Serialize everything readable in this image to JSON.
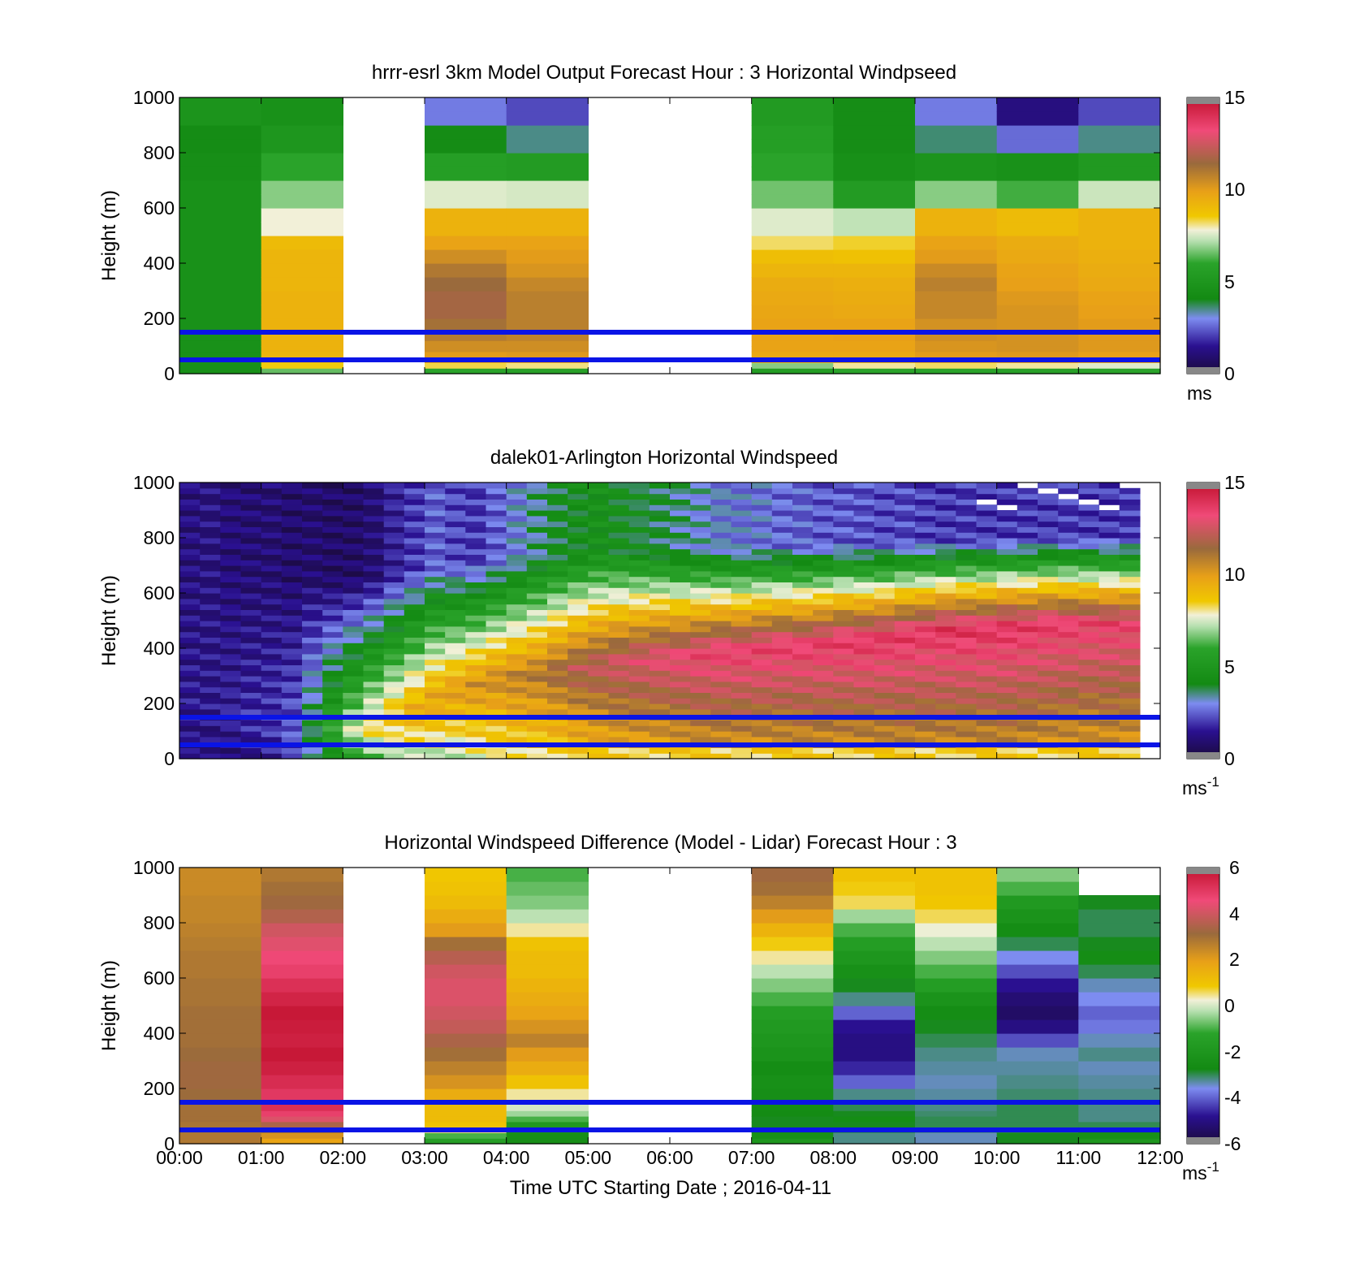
{
  "figure": {
    "xlabel": "Time UTC  Starting Date ; 2016-04-11",
    "x_ticks": [
      "00:00",
      "01:00",
      "02:00",
      "03:00",
      "04:00",
      "05:00",
      "06:00",
      "07:00",
      "08:00",
      "09:00",
      "10:00",
      "11:00",
      "12:00"
    ]
  },
  "chart_data": [
    {
      "type": "heatmap",
      "title": "hrrr-esrl 3km Model Output   Forecast Hour : 3 Horizontal Windpseed",
      "ylabel": "Height (m)",
      "xlabel": "",
      "xlim": [
        0,
        12
      ],
      "ylim": [
        0,
        1000
      ],
      "y_ticks": [
        "0",
        "200",
        "400",
        "600",
        "800",
        "1000"
      ],
      "colorbar": {
        "ticks": [
          "0",
          "5",
          "10",
          "15"
        ],
        "range": [
          0,
          15
        ],
        "unit_label": "ms",
        "unit_exponent": ""
      },
      "reference_lines_m": [
        50,
        150
      ],
      "reference_line_color": "#0a14e6",
      "heights_m": [
        20,
        40,
        60,
        80,
        100,
        120,
        150,
        200,
        250,
        300,
        350,
        400,
        450,
        500,
        550,
        600,
        650,
        700,
        750,
        800,
        850,
        900,
        950,
        1000
      ],
      "hours": [
        0,
        1,
        3,
        4,
        7,
        8,
        9,
        10,
        11
      ],
      "values": [
        [
          4.5,
          4.5,
          4.6,
          4.6,
          4.6,
          4.6,
          4.6,
          4.6,
          4.6,
          4.6,
          4.6,
          4.6,
          4.6,
          4.6,
          4.6,
          4.6,
          4.6,
          4.6,
          4.4,
          4.4,
          4.2,
          4.2,
          4.8,
          4.8
        ],
        [
          6.5,
          8.5,
          9.0,
          9.2,
          9.3,
          9.3,
          9.3,
          9.3,
          9.3,
          9.3,
          9.2,
          9.2,
          9.2,
          9.0,
          7.8,
          7.8,
          6.8,
          6.8,
          6.0,
          6.0,
          5.0,
          5.0,
          4.6,
          4.6
        ],
        [
          6.0,
          8.3,
          9.6,
          10.0,
          10.4,
          10.4,
          10.9,
          11.2,
          11.6,
          11.6,
          11.4,
          11.0,
          10.4,
          9.8,
          9.3,
          9.3,
          7.6,
          7.6,
          5.6,
          5.6,
          4.2,
          4.2,
          2.8,
          2.8
        ],
        [
          5.8,
          8.1,
          9.6,
          10.1,
          10.4,
          10.4,
          10.7,
          10.8,
          10.8,
          10.8,
          10.6,
          10.2,
          10.0,
          9.8,
          9.3,
          9.3,
          7.5,
          7.5,
          5.4,
          5.4,
          3.5,
          3.5,
          2.2,
          2.2
        ],
        [
          5.5,
          6.8,
          9.1,
          9.6,
          9.8,
          9.8,
          9.8,
          9.8,
          9.7,
          9.6,
          9.5,
          9.2,
          8.9,
          8.2,
          7.6,
          7.6,
          6.6,
          6.6,
          6.0,
          6.0,
          5.6,
          5.6,
          5.3,
          5.3
        ],
        [
          6.0,
          8.0,
          9.2,
          9.6,
          9.8,
          9.8,
          9.9,
          9.8,
          9.6,
          9.5,
          9.4,
          9.2,
          8.8,
          8.4,
          7.3,
          7.3,
          5.4,
          5.4,
          4.5,
          4.5,
          4.3,
          4.3,
          4.3,
          4.3
        ],
        [
          6.0,
          8.2,
          9.6,
          10.0,
          10.2,
          10.2,
          10.4,
          10.3,
          10.6,
          10.6,
          10.8,
          10.5,
          10.0,
          9.8,
          9.3,
          9.3,
          6.8,
          6.8,
          4.8,
          4.8,
          3.6,
          3.6,
          2.8,
          2.8
        ],
        [
          5.8,
          8.0,
          9.8,
          10.1,
          10.3,
          10.3,
          10.3,
          10.2,
          10.2,
          10.1,
          9.9,
          9.8,
          9.6,
          9.5,
          9.0,
          9.0,
          6.2,
          6.2,
          4.6,
          4.6,
          2.6,
          2.6,
          1.2,
          1.2
        ],
        [
          6.0,
          7.6,
          9.6,
          9.9,
          10.1,
          10.1,
          10.1,
          10.0,
          9.9,
          9.8,
          9.6,
          9.5,
          9.4,
          9.3,
          9.3,
          9.3,
          7.4,
          7.4,
          5.2,
          5.2,
          3.5,
          3.5,
          2.2,
          2.2
        ]
      ]
    },
    {
      "type": "heatmap",
      "title": "dalek01-Arlington  Horizontal Windspeed",
      "ylabel": "Height (m)",
      "xlabel": "",
      "xlim": [
        0,
        12
      ],
      "ylim": [
        0,
        1000
      ],
      "y_ticks": [
        "0",
        "200",
        "400",
        "600",
        "800",
        "1000"
      ],
      "colorbar": {
        "ticks": [
          "0",
          "5",
          "10",
          "15"
        ],
        "range": [
          0,
          15
        ],
        "unit_label": "ms",
        "unit_exponent": "-1"
      },
      "reference_lines_m": [
        50,
        150
      ],
      "reference_line_color": "#0a14e6",
      "time_step_hours": 0.25,
      "height_step_m": 20,
      "data_end_hour": 11.8,
      "profile_model": {
        "low_jet_core_height_m": [
          200,
          200,
          180,
          150,
          130,
          120,
          110,
          100,
          110,
          130,
          160,
          190,
          230,
          260,
          280,
          300,
          310,
          320,
          330,
          340,
          350,
          360,
          370,
          380,
          380,
          390,
          400,
          400,
          410,
          420,
          420,
          430,
          440,
          440,
          450,
          460,
          470,
          480,
          480,
          480,
          490,
          490,
          500,
          500,
          500,
          500,
          500,
          500
        ],
        "low_jet_peak_ms": [
          1.5,
          1.4,
          1.6,
          1.8,
          2.0,
          2.5,
          4.0,
          6.0,
          7.5,
          8.5,
          9.0,
          9.5,
          9.8,
          10.0,
          10.3,
          10.5,
          10.8,
          11.0,
          11.5,
          12.0,
          12.3,
          12.6,
          12.8,
          13.0,
          13.2,
          13.4,
          13.5,
          13.5,
          13.6,
          13.6,
          13.6,
          13.7,
          13.7,
          13.8,
          13.8,
          13.8,
          13.8,
          13.9,
          13.9,
          13.9,
          13.9,
          13.8,
          13.7,
          13.6,
          13.5,
          13.5,
          13.4,
          13.4
        ],
        "top_ms": [
          1.2,
          1.2,
          1.1,
          1.0,
          1.0,
          0.9,
          0.9,
          0.8,
          0.8,
          1.0,
          1.6,
          2.0,
          2.5,
          2.2,
          2.0,
          2.5,
          3.0,
          3.5,
          4.0,
          4.2,
          4.5,
          4.3,
          4.0,
          3.8,
          3.5,
          3.2,
          3.0,
          2.8,
          2.8,
          2.6,
          2.5,
          2.4,
          2.4,
          2.3,
          2.2,
          2.2,
          2.1,
          2.0,
          2.0,
          2.0,
          2.0,
          2.0,
          2.0,
          2.0,
          2.0,
          2.0,
          2.0,
          2.0
        ]
      },
      "missing_data_note": "white gaps near top after ~09:30"
    },
    {
      "type": "heatmap",
      "title": "Horizontal Windspeed Difference (Model - Lidar) Forecast Hour : 3",
      "ylabel": "Height (m)",
      "xlabel": "Time UTC  Starting Date ; 2016-04-11",
      "xlim": [
        0,
        12
      ],
      "ylim": [
        0,
        1000
      ],
      "y_ticks": [
        "0",
        "200",
        "400",
        "600",
        "800",
        "1000"
      ],
      "colorbar": {
        "ticks": [
          "-6",
          "-4",
          "-2",
          "0",
          "2",
          "4",
          "6"
        ],
        "range": [
          -6,
          6
        ],
        "unit_label": "ms",
        "unit_exponent": "-1"
      },
      "reference_lines_m": [
        50,
        150
      ],
      "reference_line_color": "#0a14e6",
      "heights_m": [
        20,
        40,
        60,
        80,
        100,
        120,
        150,
        200,
        250,
        300,
        350,
        400,
        450,
        500,
        550,
        600,
        650,
        700,
        750,
        800,
        850,
        900,
        950,
        1000
      ],
      "hours": [
        0,
        1,
        3,
        4,
        7,
        8,
        9,
        10,
        11
      ],
      "values": [
        [
          2.8,
          2.8,
          2.9,
          2.9,
          3.0,
          3.0,
          3.0,
          3.1,
          3.2,
          3.2,
          3.1,
          3.0,
          3.0,
          3.0,
          2.9,
          2.9,
          2.8,
          2.8,
          2.7,
          2.6,
          2.5,
          2.5,
          2.4,
          2.4
        ],
        [
          1.8,
          2.2,
          3.0,
          3.4,
          4.2,
          4.8,
          5.2,
          5.0,
          5.3,
          5.6,
          5.8,
          5.6,
          5.7,
          5.8,
          5.5,
          5.2,
          4.8,
          4.6,
          4.3,
          4.0,
          3.5,
          3.2,
          3.0,
          2.8
        ],
        [
          -1.5,
          -1.0,
          0.5,
          1.0,
          1.2,
          1.2,
          1.2,
          1.6,
          2.2,
          2.6,
          3.0,
          3.4,
          3.8,
          4.0,
          4.2,
          4.2,
          4.0,
          3.6,
          3.0,
          2.0,
          1.6,
          1.2,
          1.0,
          0.9
        ],
        [
          -2.5,
          -2.5,
          -2.2,
          -1.8,
          -1.0,
          -0.4,
          0.0,
          0.4,
          1.0,
          1.6,
          2.0,
          2.6,
          2.2,
          1.8,
          1.6,
          1.4,
          1.2,
          1.2,
          1.0,
          0.4,
          -0.2,
          -0.6,
          -0.8,
          -1.0
        ],
        [
          -2.0,
          -2.4,
          -2.6,
          -2.8,
          -2.8,
          -2.7,
          -2.6,
          -2.5,
          -2.4,
          -2.6,
          -2.2,
          -2.0,
          -1.8,
          -1.6,
          -1.0,
          -0.6,
          -0.2,
          0.4,
          0.8,
          1.4,
          2.0,
          2.6,
          3.0,
          3.2
        ],
        [
          -3.2,
          -3.2,
          -3.0,
          -2.8,
          -2.6,
          -2.8,
          -3.0,
          -3.2,
          -4.0,
          -4.6,
          -5.0,
          -5.0,
          -4.8,
          -4.0,
          -3.2,
          -2.8,
          -2.4,
          -2.0,
          -1.6,
          -1.0,
          -0.4,
          0.6,
          0.8,
          1.0
        ],
        [
          -3.4,
          -3.4,
          -3.2,
          -3.0,
          -3.0,
          -3.1,
          -3.2,
          -3.3,
          -3.4,
          -3.3,
          -3.2,
          -3.0,
          -2.8,
          -2.6,
          -2.2,
          -1.6,
          -1.0,
          -0.6,
          -0.2,
          0.2,
          0.6,
          0.9,
          1.0,
          1.0
        ],
        [
          -2.8,
          -2.8,
          -2.9,
          -3.0,
          -3.0,
          -3.0,
          -3.0,
          -3.1,
          -3.2,
          -3.3,
          -3.4,
          -4.2,
          -5.0,
          -5.4,
          -5.2,
          -4.8,
          -4.2,
          -3.6,
          -3.0,
          -2.6,
          -2.2,
          -1.8,
          -1.0,
          -0.6
        ],
        [
          -2.0,
          -2.4,
          -2.8,
          -3.0,
          -3.2,
          -3.2,
          -3.2,
          -3.2,
          -3.3,
          -3.4,
          -3.2,
          -3.4,
          -3.8,
          -4.0,
          -3.6,
          -3.4,
          -3.0,
          -2.6,
          -2.8,
          -3.0,
          -3.0,
          -2.8,
          null,
          null
        ]
      ]
    }
  ]
}
